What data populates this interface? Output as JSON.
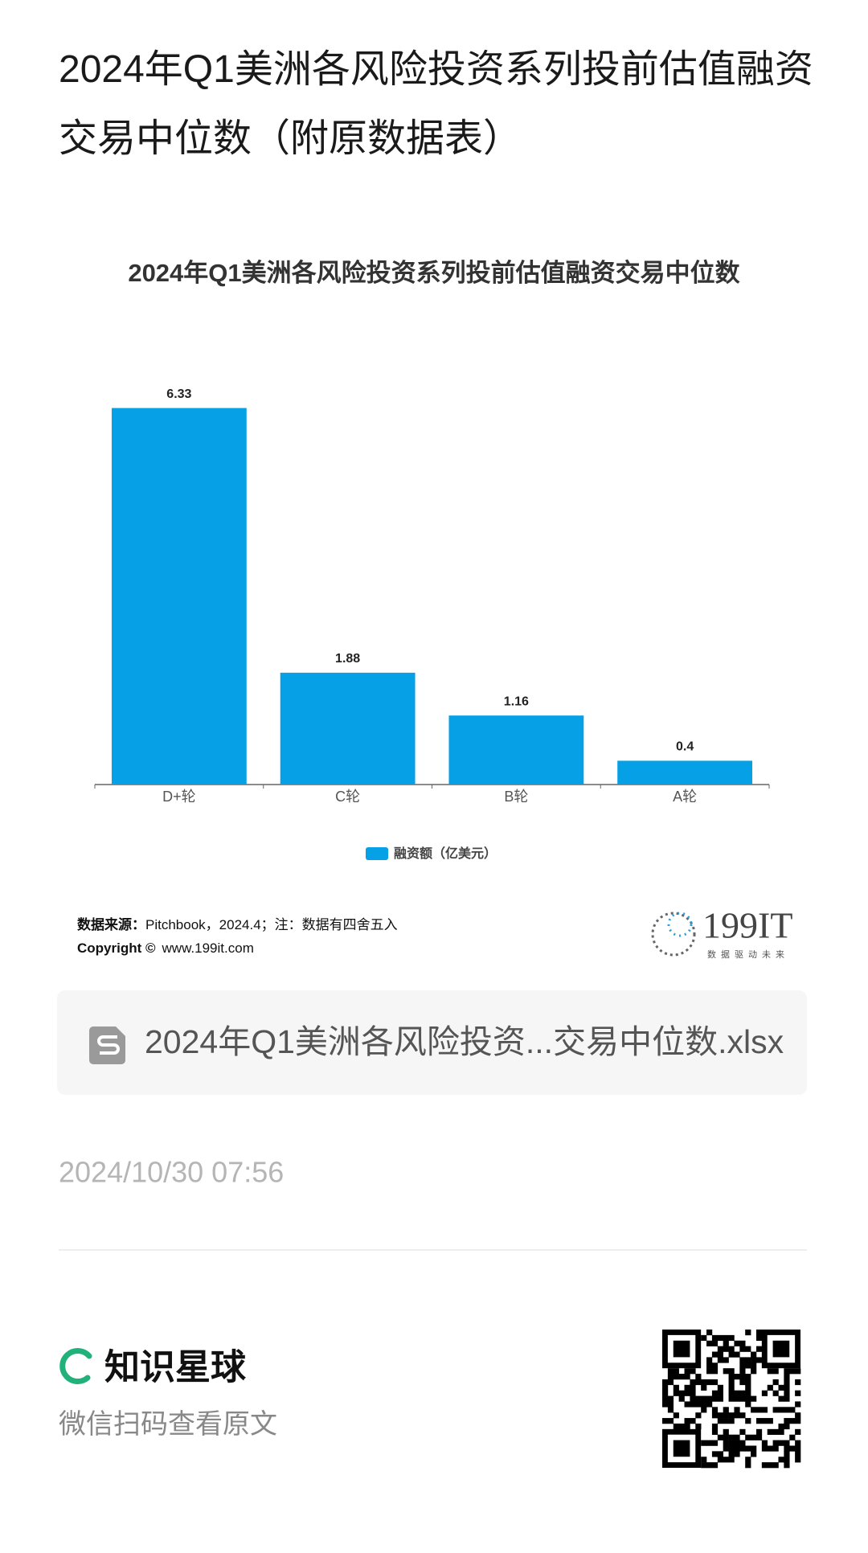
{
  "header": {
    "title": "2024年Q1美洲各风险投资系列投前估值融资交易中位数（附原数据表）"
  },
  "chart_data": {
    "type": "bar",
    "title": "2024年Q1美洲各风险投资系列投前估值融资交易中位数",
    "categories": [
      "D+轮",
      "C轮",
      "B轮",
      "A轮"
    ],
    "series": [
      {
        "name": "融资额（亿美元）",
        "color": "#05a0e6",
        "values": [
          6.33,
          1.88,
          1.16,
          0.4
        ]
      }
    ],
    "ylim": [
      0,
      7
    ],
    "source_label": "数据来源：",
    "source_text": "Pitchbook，2024.4；注：数据有四舍五入",
    "copyright_label": "Copyright ©",
    "copyright_text": "www.199it.com"
  },
  "logo": {
    "name": "199IT",
    "tagline": "数据驱动未来"
  },
  "attachment": {
    "filename": "2024年Q1美洲各风险投资...交易中位数.xlsx"
  },
  "meta": {
    "date": "2024/10/30 07:56"
  },
  "footer": {
    "brand": "知识星球",
    "caption": "微信扫码查看原文"
  }
}
